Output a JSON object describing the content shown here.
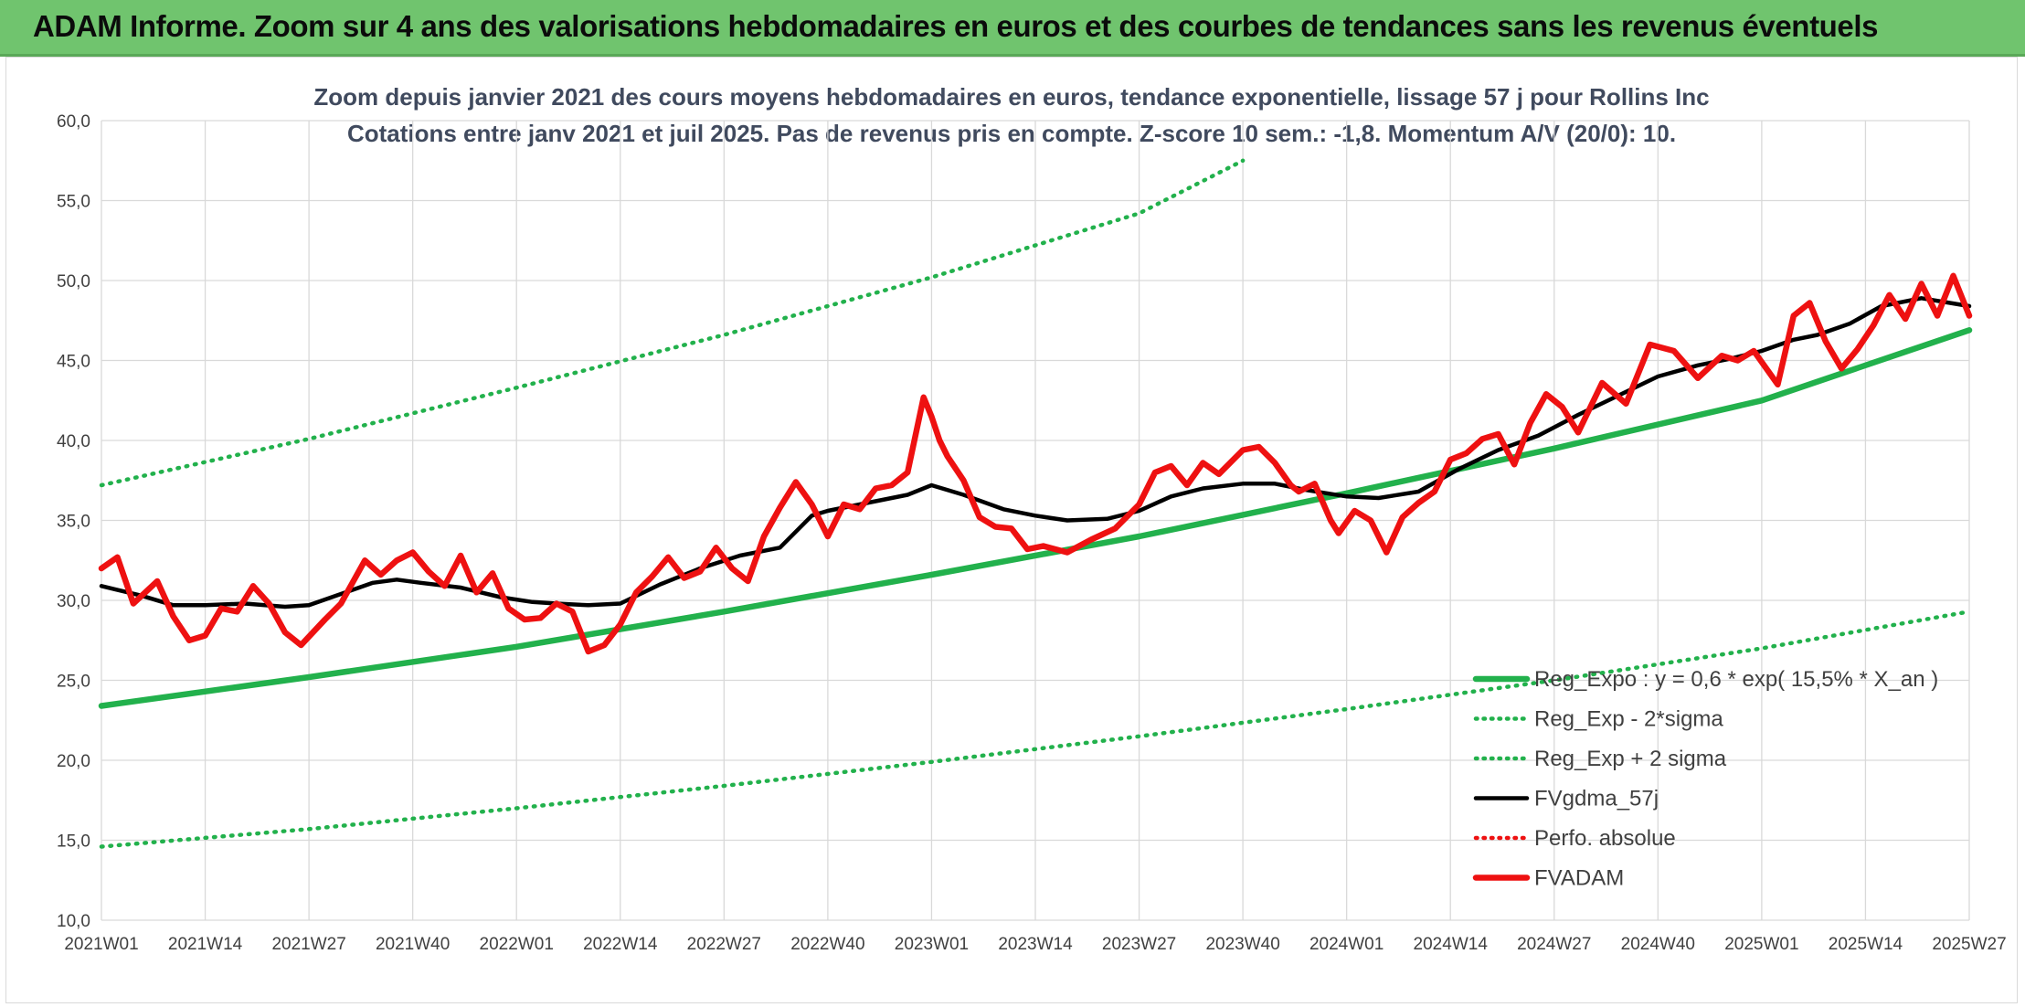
{
  "banner": {
    "title": "ADAM Informe. Zoom sur 4 ans des valorisations hebdomadaires en euros et des courbes de tendances sans les revenus éventuels",
    "background": "#70c46e"
  },
  "chart_data": {
    "type": "line",
    "title": "Zoom depuis janvier 2021 des cours moyens hebdomadaires en euros, tendance exponentielle, lissage 57 j pour Rollins Inc",
    "subtitle": "Cotations entre janv 2021 et juil 2025. Pas de revenus pris en compte. Z-score 10 sem.: -1,8. Momentum A/V (20/0): 10.",
    "xlabel": "",
    "ylabel": "",
    "ylim": [
      10,
      60
    ],
    "yticks": [
      "10,0",
      "15,0",
      "20,0",
      "25,0",
      "30,0",
      "35,0",
      "40,0",
      "45,0",
      "50,0",
      "55,0",
      "60,0"
    ],
    "xlim_weeks": [
      0,
      234
    ],
    "x_tick_labels": [
      "2021W01",
      "2021W14",
      "2021W27",
      "2021W40",
      "2022W01",
      "2022W14",
      "2022W27",
      "2022W40",
      "2023W01",
      "2023W14",
      "2023W27",
      "2023W40",
      "2024W01",
      "2024W14",
      "2024W27",
      "2024W40",
      "2025W01",
      "2025W14",
      "2025W27"
    ],
    "grid": true,
    "legend_position": "bottom-right",
    "series": [
      {
        "name": "Reg_Expo : y = 0,6 * exp( 15,5% *  X_an )",
        "color": "#22b14c",
        "style": "solid-thick",
        "x": [
          0,
          26,
          52,
          78,
          104,
          130,
          156,
          182,
          208,
          234
        ],
        "y": [
          23.4,
          25.2,
          27.1,
          29.3,
          31.6,
          34.0,
          36.7,
          39.5,
          42.5,
          46.9
        ]
      },
      {
        "name": "Reg_Exp - 2*sigma",
        "color": "#22b14c",
        "style": "dotted",
        "x": [
          0,
          26,
          52,
          78,
          104,
          130,
          156,
          182,
          208,
          234
        ],
        "y": [
          14.6,
          15.7,
          17.0,
          18.4,
          19.9,
          21.5,
          23.2,
          25.0,
          27.0,
          29.3
        ]
      },
      {
        "name": "Reg_Exp + 2 sigma",
        "color": "#22b14c",
        "style": "dotted",
        "x": [
          0,
          26,
          52,
          78,
          104,
          130,
          143
        ],
        "y": [
          37.2,
          40.1,
          43.3,
          46.6,
          50.2,
          54.2,
          57.5
        ]
      },
      {
        "name": "FVgdma_57j",
        "color": "#000000",
        "style": "solid",
        "x": [
          0,
          5,
          9,
          13,
          18,
          23,
          26,
          30,
          34,
          37,
          40,
          45,
          50,
          54,
          57,
          61,
          65,
          70,
          75,
          80,
          85,
          89,
          91,
          95,
          101,
          104,
          108,
          113,
          117,
          121,
          126,
          130,
          134,
          138,
          143,
          147,
          151,
          156,
          160,
          165,
          170,
          175,
          180,
          185,
          190,
          195,
          200,
          204,
          208,
          212,
          215,
          219,
          223,
          228,
          234
        ],
        "y": [
          30.9,
          30.3,
          29.7,
          29.7,
          29.8,
          29.6,
          29.7,
          30.4,
          31.1,
          31.3,
          31.1,
          30.8,
          30.2,
          29.9,
          29.8,
          29.7,
          29.8,
          31.0,
          32.0,
          32.8,
          33.3,
          35.3,
          35.6,
          36.0,
          36.6,
          37.2,
          36.6,
          35.7,
          35.3,
          35.0,
          35.1,
          35.6,
          36.5,
          37.0,
          37.3,
          37.3,
          36.9,
          36.5,
          36.4,
          36.8,
          38.2,
          39.4,
          40.3,
          41.6,
          42.8,
          44.0,
          44.7,
          45.1,
          45.6,
          46.3,
          46.6,
          47.3,
          48.4,
          48.9,
          48.4
        ]
      },
      {
        "name": "Perfo. absolue",
        "color": "#ee1111",
        "style": "dotted",
        "x": [],
        "y": []
      },
      {
        "name": "FVADAM",
        "color": "#ee1111",
        "style": "solid-thick",
        "x": [
          0,
          2,
          4,
          7,
          9,
          11,
          13,
          15,
          17,
          19,
          21,
          23,
          25,
          28,
          30,
          33,
          35,
          37,
          39,
          41,
          43,
          45,
          47,
          49,
          51,
          53,
          55,
          57,
          59,
          61,
          63,
          65,
          67,
          69,
          71,
          73,
          75,
          77,
          79,
          81,
          83,
          85,
          87,
          89,
          91,
          93,
          95,
          97,
          99,
          101,
          103,
          104,
          105,
          106,
          108,
          110,
          112,
          114,
          116,
          118,
          121,
          124,
          127,
          130,
          132,
          134,
          136,
          138,
          140,
          143,
          145,
          147,
          149,
          150,
          152,
          154,
          155,
          157,
          159,
          161,
          163,
          165,
          167,
          169,
          171,
          173,
          175,
          177,
          179,
          181,
          183,
          185,
          188,
          191,
          194,
          197,
          200,
          203,
          205,
          207,
          210,
          212,
          214,
          216,
          218,
          220,
          222,
          224,
          226,
          228,
          230,
          232,
          234
        ],
        "y": [
          32.0,
          32.7,
          29.8,
          31.2,
          29.0,
          27.5,
          27.8,
          29.5,
          29.3,
          30.9,
          29.8,
          28.0,
          27.2,
          28.8,
          29.8,
          32.5,
          31.6,
          32.5,
          33.0,
          31.8,
          30.9,
          32.8,
          30.5,
          31.7,
          29.5,
          28.8,
          28.9,
          29.8,
          29.3,
          26.8,
          27.2,
          28.5,
          30.5,
          31.5,
          32.7,
          31.4,
          31.8,
          33.3,
          32.0,
          31.2,
          34.0,
          35.8,
          37.4,
          36.0,
          34.0,
          36.0,
          35.7,
          37.0,
          37.2,
          38.0,
          42.7,
          41.5,
          40.0,
          39.0,
          37.5,
          35.2,
          34.6,
          34.5,
          33.2,
          33.4,
          33.0,
          33.8,
          34.5,
          36.0,
          38.0,
          38.4,
          37.2,
          38.6,
          37.9,
          39.4,
          39.6,
          38.6,
          37.2,
          36.8,
          37.3,
          35.0,
          34.2,
          35.6,
          35.0,
          33.0,
          35.2,
          36.1,
          36.8,
          38.8,
          39.2,
          40.1,
          40.4,
          38.5,
          41.1,
          42.9,
          42.1,
          40.5,
          43.6,
          42.3,
          46.0,
          45.6,
          43.9,
          45.3,
          45.0,
          45.6,
          43.5,
          47.8,
          48.6,
          46.2,
          44.5,
          45.7,
          47.2,
          49.1,
          47.6,
          49.8,
          47.8,
          50.3,
          47.8
        ]
      }
    ]
  }
}
